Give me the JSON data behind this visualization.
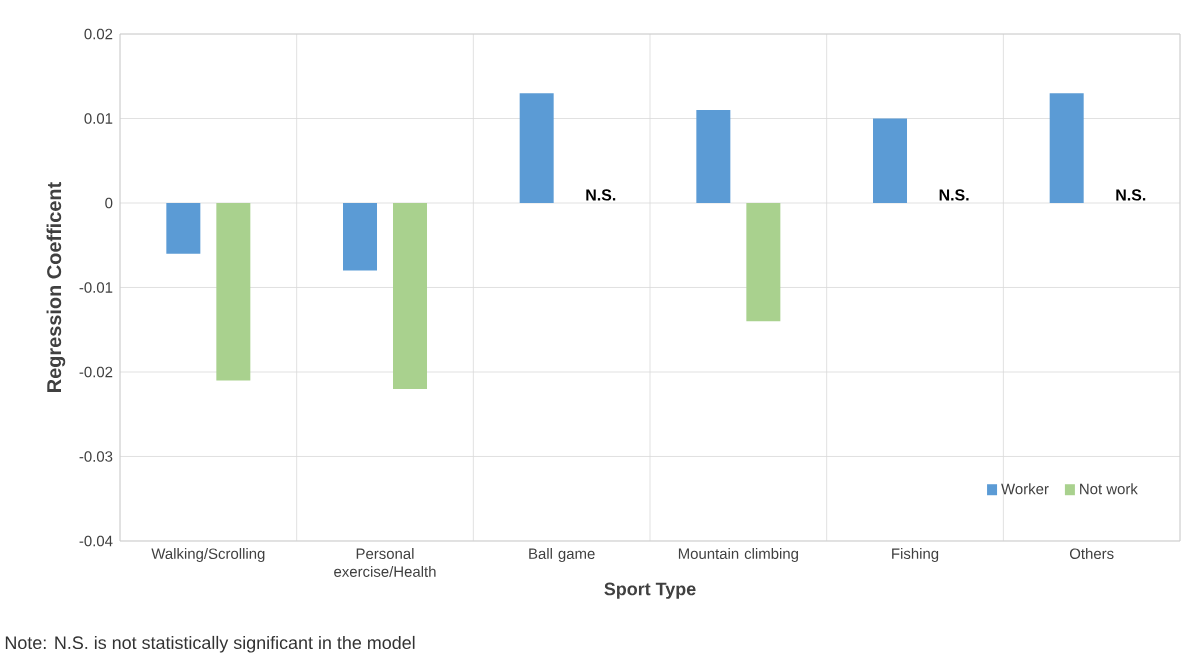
{
  "chart_data": {
    "type": "bar",
    "xlabel": "Sport Type",
    "ylabel": "Regression Coefficent",
    "categories": [
      "Walking/Scrolling",
      "Personal exercise/Health",
      "Ball game",
      "Mountain climbing",
      "Fishing",
      "Others"
    ],
    "series": [
      {
        "name": "Worker",
        "color": "#5b9bd5",
        "values": [
          -0.006,
          -0.008,
          0.013,
          0.011,
          0.01,
          0.013
        ]
      },
      {
        "name": "Not work",
        "color": "#a9d18e",
        "values": [
          -0.021,
          -0.022,
          null,
          -0.014,
          null,
          null
        ]
      }
    ],
    "ylim": [
      -0.04,
      0.02
    ],
    "yticks": [
      -0.04,
      -0.03,
      -0.02,
      -0.01,
      0,
      0.01,
      0.02
    ],
    "grid": true,
    "legend": "bottom right",
    "annotations": [
      "N.S.",
      "N.S.",
      "N.S.",
      "Note: N.S. is not statistically significant in the model"
    ]
  }
}
